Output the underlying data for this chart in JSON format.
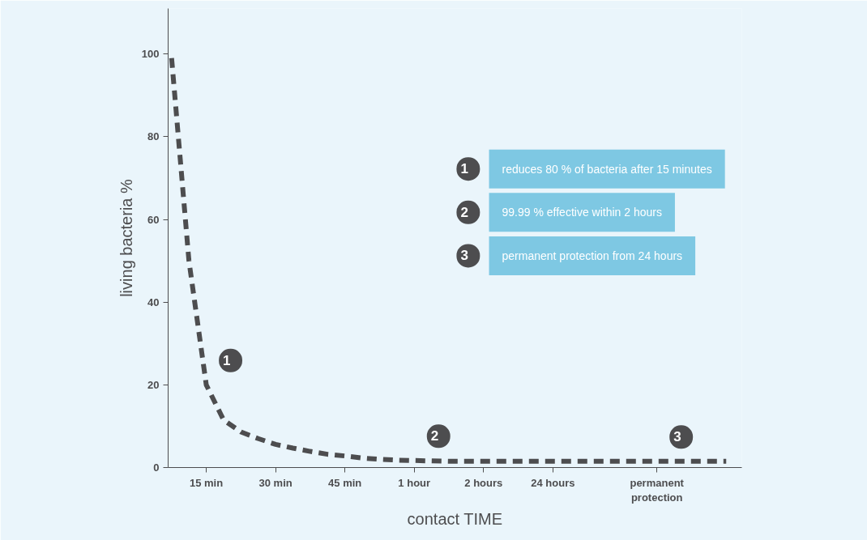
{
  "chart_data": {
    "type": "line",
    "xlabel": "contact TIME",
    "ylabel": "living bacteria %",
    "categories": [
      null,
      null,
      "15 min",
      null,
      null,
      null,
      "30 min",
      null,
      null,
      null,
      "45 min",
      null,
      null,
      null,
      "1 hour",
      null,
      null,
      null,
      "2 hours",
      null,
      null,
      null,
      "24 hours",
      null,
      null,
      null,
      null,
      null,
      "permanent\nprotection",
      null,
      null,
      null,
      null
    ],
    "series": [
      {
        "color": "#4d4d4f",
        "values": [
          99,
          50,
          20,
          11.5,
          8.6,
          7,
          5.6,
          4.7,
          3.9,
          3.2,
          2.8,
          2.3,
          2.0,
          1.8,
          1.7,
          1.6,
          1.5,
          1.5,
          1.5,
          1.5,
          1.5,
          1.5,
          1.5,
          1.5,
          1.5,
          1.5,
          1.5,
          1.5,
          1.5,
          1.5,
          1.5,
          1.5,
          1.5
        ]
      }
    ],
    "ylim": [
      0,
      111
    ],
    "yticks": [
      0,
      20,
      40,
      60,
      80,
      100
    ],
    "grid": false,
    "marker": "none",
    "line_style": "dashed",
    "annotations": [
      {
        "text": "1",
        "x": "15 min",
        "y": 20
      },
      {
        "text": "2",
        "x": "1 hour",
        "y": 1.7
      },
      {
        "text": "3",
        "x": "permanent\nprotection",
        "y": 1.5
      },
      "reduces 80 % of bacteria after 15 minutes",
      "99.99 % effective within 2 hours",
      "permanent protection from 24 hours"
    ]
  }
}
